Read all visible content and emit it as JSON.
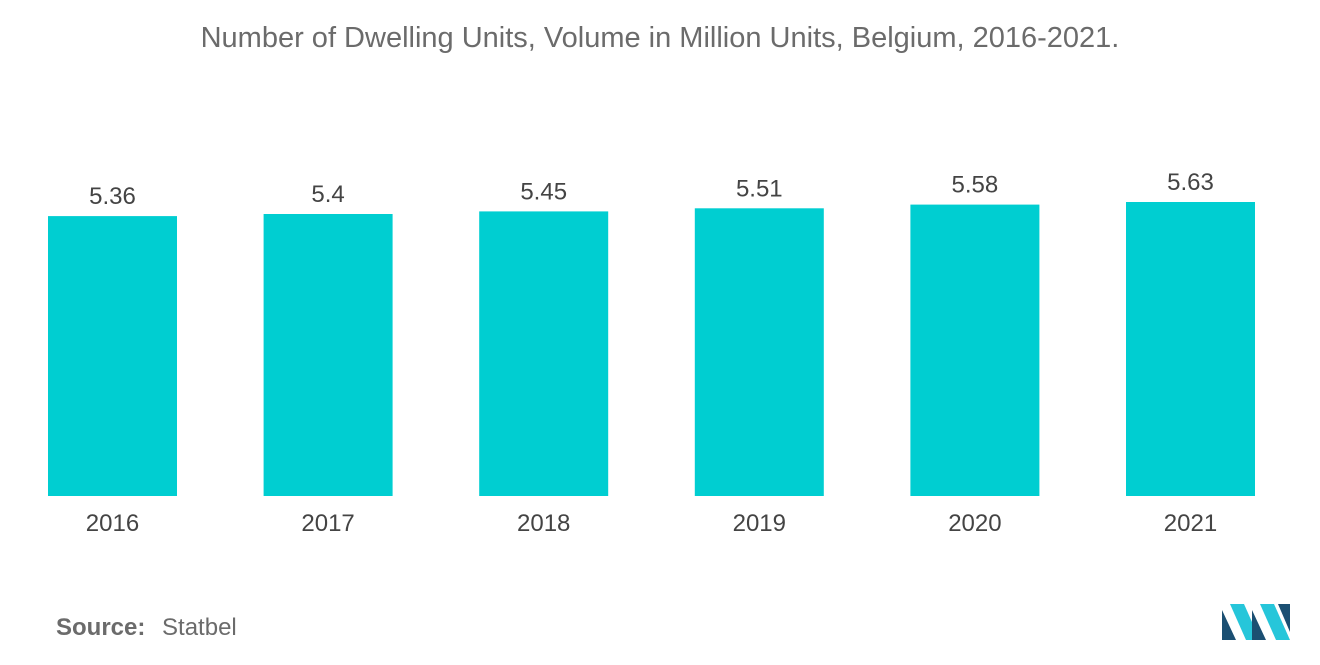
{
  "chart_data": {
    "type": "bar",
    "title": "Number of Dwelling Units, Volume in Million Units, Belgium, 2016-2021.",
    "categories": [
      "2016",
      "2017",
      "2018",
      "2019",
      "2020",
      "2021"
    ],
    "values": [
      5.36,
      5.4,
      5.45,
      5.51,
      5.58,
      5.63
    ],
    "data_labels": [
      "5.36",
      "5.4",
      "5.45",
      "5.51",
      "5.58",
      "5.63"
    ],
    "xlabel": "",
    "ylabel": "",
    "ylim": [
      0,
      5.63
    ],
    "grid": false,
    "legend": "none",
    "bar_color": "#00CED1"
  },
  "footer": {
    "source_label": "Source:",
    "source_value": "Statbel"
  },
  "colors": {
    "text": "#6b6b6b",
    "bar": "#00CED1",
    "logo_dark": "#1b4f72",
    "logo_light": "#26c6da"
  },
  "logo": {
    "icon": "mordor-intelligence-logo-icon"
  }
}
